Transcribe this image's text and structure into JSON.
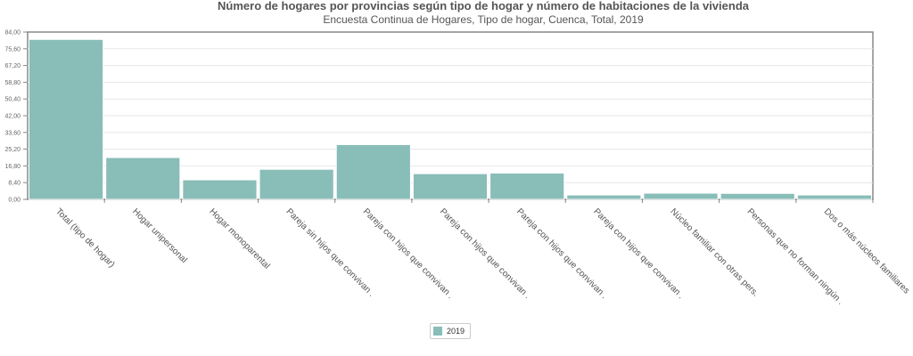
{
  "chart_data": {
    "type": "bar",
    "title": "Número de hogares por provincias según tipo de hogar y número de habitaciones de la vivienda",
    "subtitle": "Encuesta Continua de Hogares, Tipo de hogar, Cuenca, Total, 2019",
    "categories": [
      "Total (tipo de hogar)",
      "Hogar unipersonal",
      "Hogar monoparental",
      "Pareja sin hijos que convivan .",
      "Pareja con hijos que convivan .",
      "Pareja con hijos que convivan .",
      "Pareja con hijos que convivan .",
      "Pareja con hijos que convivan .",
      "Núcleo familiar con otras pers.",
      "Personas que no forman ningún .",
      "Dos o más núcleos familiares"
    ],
    "series": [
      {
        "name": "2019",
        "values": [
          80.3,
          21.0,
          9.8,
          15.1,
          27.5,
          12.9,
          13.2,
          2.2,
          3.1,
          3.0,
          2.2
        ]
      }
    ],
    "y_ticks": [
      "0,00",
      "8,40",
      "16,80",
      "25,20",
      "33,60",
      "42,00",
      "50,40",
      "58,80",
      "67,20",
      "75,60",
      "84,00"
    ],
    "ylim": [
      0,
      84
    ],
    "grid": true,
    "legend_position": "bottom-center",
    "colors": {
      "bar": "#89bdb8",
      "bar_stroke": "#ffffff",
      "axis": "#888888",
      "grid": "#e6e6e6"
    }
  }
}
